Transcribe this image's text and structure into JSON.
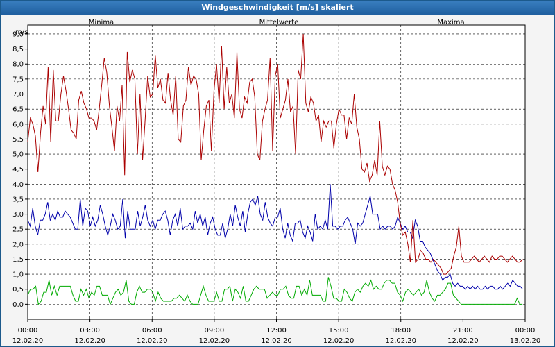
{
  "window_title": "Windgeschwindigkeit [m/s] skaliert",
  "chart_data": {
    "type": "line",
    "title": "Windgeschwindigkeit [m/s] skaliert",
    "ylabel": "m/s",
    "ylim": [
      -0.5,
      9.3
    ],
    "yticks": [
      "0,0",
      "0,5",
      "1,0",
      "1,5",
      "2,0",
      "2,5",
      "3,0",
      "3,5",
      "4,0",
      "4,5",
      "5,0",
      "5,5",
      "6,0",
      "6,5",
      "7,0",
      "7,5",
      "8,0",
      "8,5",
      "9,0"
    ],
    "xlim_hours": [
      0,
      24
    ],
    "xticks": [
      {
        "time": "00:00",
        "date": "12.02.20"
      },
      {
        "time": "03:00",
        "date": "12.02.20"
      },
      {
        "time": "06:00",
        "date": "12.02.20"
      },
      {
        "time": "09:00",
        "date": "12.02.20"
      },
      {
        "time": "12:00",
        "date": "12.02.20"
      },
      {
        "time": "15:00",
        "date": "12.02.20"
      },
      {
        "time": "18:00",
        "date": "12.02.20"
      },
      {
        "time": "21:00",
        "date": "12.02.20"
      },
      {
        "time": "00:00",
        "date": "13.02.20"
      }
    ],
    "grid": true,
    "series": [
      {
        "name": "Minima",
        "color": "#00aa00",
        "values": [
          0.3,
          0.5,
          0.5,
          0.6,
          0.0,
          0.1,
          0.4,
          0.4,
          0.8,
          0.3,
          0.6,
          0.3,
          0.6,
          0.6,
          0.6,
          0.6,
          0.6,
          0.3,
          0.1,
          0.1,
          0.5,
          0.3,
          0.5,
          0.2,
          0.4,
          0.3,
          0.6,
          0.6,
          0.3,
          0.3,
          0.3,
          0.0,
          0.2,
          0.4,
          0.5,
          0.3,
          0.4,
          0.8,
          0.1,
          0.0,
          0.0,
          0.4,
          0.6,
          0.4,
          0.4,
          0.5,
          0.5,
          0.4,
          0.1,
          0.4,
          0.2,
          0.1,
          0.1,
          0.1,
          0.1,
          0.2,
          0.2,
          0.3,
          0.2,
          0.1,
          0.3,
          0.1,
          0.0,
          0.0,
          0.0,
          0.3,
          0.6,
          0.3,
          0.1,
          0.1,
          0.1,
          0.4,
          0.1,
          0.1,
          0.5,
          0.5,
          0.6,
          0.1,
          0.5,
          0.4,
          0.2,
          0.6,
          0.1,
          0.1,
          0.3,
          0.5,
          0.6,
          0.5,
          0.5,
          0.5,
          0.2,
          0.3,
          0.4,
          0.3,
          0.3,
          0.5,
          0.5,
          0.6,
          0.3,
          0.2,
          0.2,
          0.6,
          0.6,
          0.3,
          0.5,
          0.3,
          0.8,
          0.3,
          0.3,
          0.3,
          0.3,
          0.1,
          0.1,
          0.9,
          0.6,
          0.2,
          0.2,
          0.1,
          0.1,
          0.5,
          0.4,
          0.2,
          0.1,
          0.4,
          0.5,
          0.4,
          0.6,
          0.7,
          0.6,
          0.8,
          0.5,
          0.6,
          0.5,
          0.5,
          0.7,
          0.8,
          0.8,
          0.7,
          0.7,
          0.4,
          0.3,
          0.1,
          0.4,
          0.5,
          0.4,
          0.3,
          0.4,
          0.5,
          0.3,
          0.4,
          0.8,
          0.4,
          0.2,
          0.1,
          0.3,
          0.3,
          0.4,
          0.5,
          0.7,
          0.7,
          0.3,
          0.2,
          0.1,
          0.0,
          0.0,
          0.0,
          0.0,
          0.0,
          0.0,
          0.0,
          0.0,
          0.0,
          0.0,
          0.0,
          0.0,
          0.0,
          0.0,
          0.0,
          0.0,
          0.0,
          0.0,
          0.0,
          0.0,
          0.0,
          0.2,
          0.0,
          0.0
        ]
      },
      {
        "name": "Mittelwerte",
        "color": "#0000aa",
        "values": [
          2.8,
          2.6,
          3.2,
          2.6,
          2.3,
          2.8,
          2.8,
          3.0,
          3.4,
          2.8,
          3.0,
          2.8,
          3.1,
          2.9,
          2.9,
          3.1,
          3.0,
          2.9,
          2.7,
          2.5,
          2.5,
          3.5,
          2.6,
          3.2,
          3.1,
          2.6,
          2.9,
          2.6,
          2.8,
          3.3,
          3.0,
          2.6,
          2.3,
          2.6,
          3.0,
          2.8,
          2.5,
          2.6,
          3.5,
          2.2,
          3.1,
          2.5,
          2.5,
          2.5,
          3.1,
          2.6,
          2.9,
          3.3,
          2.8,
          2.6,
          2.8,
          2.5,
          2.8,
          2.8,
          3.0,
          3.1,
          2.8,
          2.3,
          2.8,
          3.0,
          2.6,
          3.2,
          2.5,
          2.6,
          2.6,
          2.7,
          2.5,
          3.1,
          2.7,
          3.0,
          2.6,
          2.9,
          2.3,
          2.7,
          2.9,
          2.5,
          2.3,
          2.3,
          2.7,
          2.2,
          2.5,
          3.0,
          2.6,
          3.3,
          2.9,
          2.6,
          3.1,
          2.4,
          3.0,
          3.4,
          3.5,
          3.3,
          3.6,
          3.0,
          2.8,
          3.4,
          2.9,
          2.7,
          2.6,
          2.9,
          2.9,
          3.2,
          2.5,
          2.2,
          2.7,
          2.3,
          2.1,
          2.7,
          2.7,
          2.8,
          2.4,
          2.2,
          2.6,
          2.4,
          2.1,
          3.0,
          2.5,
          2.6,
          2.5,
          2.8,
          2.5,
          4.0,
          2.6,
          2.6,
          2.5,
          2.6,
          2.6,
          2.8,
          2.9,
          2.7,
          2.5,
          2.0,
          2.7,
          2.6,
          2.7,
          3.0,
          3.3,
          3.6,
          3.0,
          3.0,
          3.0,
          2.5,
          2.6,
          2.5,
          2.6,
          2.6,
          2.5,
          2.6,
          2.9,
          2.7,
          2.5,
          2.6,
          2.4,
          2.4,
          2.2,
          2.8,
          2.6,
          2.1,
          2.1,
          1.9,
          1.8,
          1.7,
          1.5,
          1.3,
          1.1,
          1.0,
          0.8,
          0.9,
          0.9,
          1.0,
          0.7,
          0.6,
          0.7,
          0.6,
          0.6,
          0.5,
          0.6,
          0.5,
          0.6,
          0.5,
          0.6,
          0.5,
          0.5,
          0.6,
          0.5,
          0.6,
          0.6,
          0.5,
          0.5,
          0.6,
          0.5,
          0.6,
          0.7,
          0.6,
          0.8,
          0.7,
          0.6,
          0.6,
          0.5
        ]
      },
      {
        "name": "Maxima",
        "color": "#aa0000",
        "values": [
          5.4,
          6.2,
          6.0,
          5.6,
          4.4,
          5.7,
          6.6,
          6.0,
          7.9,
          5.4,
          7.8,
          6.1,
          6.1,
          7.0,
          7.6,
          7.1,
          6.5,
          5.8,
          5.7,
          5.5,
          6.8,
          7.1,
          6.7,
          6.5,
          6.2,
          6.2,
          6.1,
          5.8,
          6.5,
          7.3,
          8.2,
          7.7,
          6.6,
          5.9,
          5.1,
          6.6,
          6.1,
          7.3,
          4.3,
          8.4,
          7.4,
          7.8,
          7.5,
          5.0,
          7.0,
          4.8,
          6.1,
          7.6,
          6.9,
          7.0,
          8.3,
          7.2,
          7.5,
          6.8,
          6.7,
          7.7,
          6.8,
          6.3,
          7.6,
          5.5,
          5.4,
          6.6,
          6.8,
          7.9,
          7.3,
          7.6,
          7.5,
          7.0,
          4.8,
          5.8,
          6.6,
          6.8,
          5.1,
          7.1,
          8.0,
          6.7,
          8.6,
          6.5,
          7.9,
          6.7,
          7.0,
          6.2,
          8.4,
          6.5,
          6.2,
          6.9,
          6.7,
          7.4,
          7.5,
          6.9,
          5.0,
          4.8,
          6.1,
          6.5,
          6.8,
          8.2,
          5.1,
          7.6,
          8.0,
          6.2,
          6.5,
          6.8,
          7.5,
          6.4,
          6.6,
          5.0,
          7.8,
          7.5,
          9.0,
          6.7,
          6.4,
          6.9,
          6.7,
          6.1,
          6.3,
          5.4,
          6.1,
          5.9,
          6.1,
          6.1,
          5.2,
          6.0,
          6.5,
          6.3,
          6.3,
          5.5,
          6.2,
          6.0,
          7.0,
          5.9,
          5.5,
          4.5,
          4.4,
          4.7,
          4.1,
          4.3,
          4.8,
          4.3,
          6.1,
          4.6,
          4.3,
          4.6,
          4.5,
          4.0,
          3.8,
          3.4,
          2.7,
          2.3,
          2.4,
          2.0,
          1.4,
          2.8,
          1.4,
          1.5,
          1.8,
          1.7,
          1.5,
          1.5,
          1.4,
          1.5,
          1.4,
          1.3,
          1.2,
          1.0,
          1.0,
          1.1,
          1.2,
          1.6,
          1.9,
          2.6,
          1.6,
          1.4,
          1.4,
          1.4,
          1.5,
          1.6,
          1.5,
          1.4,
          1.5,
          1.6,
          1.5,
          1.4,
          1.6,
          1.5,
          1.5,
          1.6,
          1.6,
          1.5,
          1.4,
          1.5,
          1.6,
          1.5,
          1.4,
          1.4,
          1.5
        ]
      }
    ]
  }
}
